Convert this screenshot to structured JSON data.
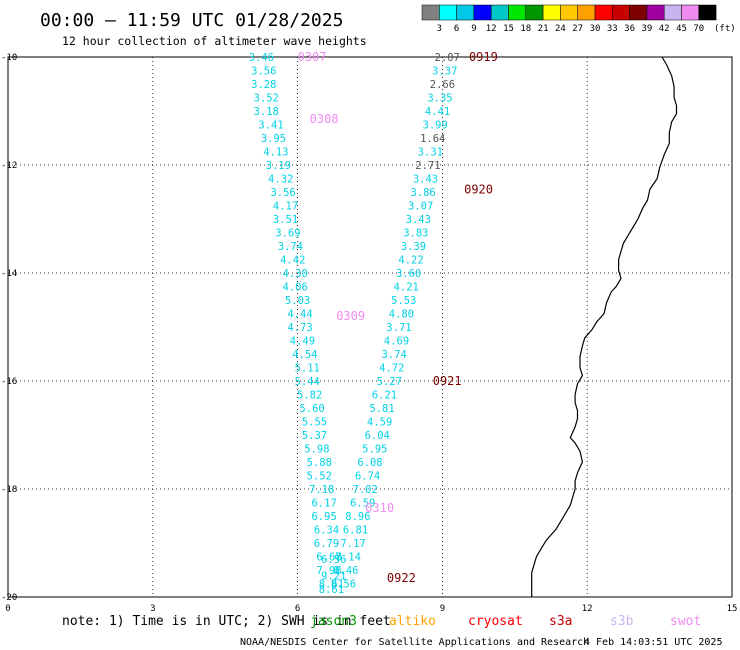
{
  "chart_data": {
    "type": "scatter",
    "title": "00:00 – 11:59 UTC 01/28/2025",
    "subtitle": "12 hour collection of altimeter wave heights",
    "xlim": [
      0,
      15
    ],
    "ylim": [
      -20,
      -10
    ],
    "x_ticks": [
      0,
      3,
      6,
      9,
      12,
      15
    ],
    "y_ticks": [
      -10,
      -12,
      -14,
      -16,
      -18,
      -20
    ],
    "x_tick_labels": [
      "0",
      "3",
      "6",
      "9",
      "12",
      "15"
    ],
    "y_tick_labels": [
      "-10",
      "-12",
      "-14",
      "-16",
      "-18",
      "-20"
    ],
    "grid": true,
    "colorbar": {
      "unit": "(ft)",
      "labels": [
        "3",
        "6",
        "9",
        "12",
        "15",
        "18",
        "21",
        "24",
        "27",
        "30",
        "33",
        "36",
        "39",
        "42",
        "45",
        "70"
      ],
      "colors": [
        "#808080",
        "#00ffff",
        "#00c8e6",
        "#0000ff",
        "#00c8c8",
        "#00e600",
        "#009600",
        "#ffff00",
        "#ffc800",
        "#ffa000",
        "#ff0000",
        "#c80000",
        "#7d0000",
        "#a000a0",
        "#c8b4f0",
        "#f08cf0",
        "#000000"
      ]
    },
    "series": [
      {
        "name": "track-west",
        "color": "#00d2e6",
        "x": [
          5.25,
          5.3,
          5.3,
          5.35,
          5.35,
          5.45,
          5.5,
          5.55,
          5.6,
          5.65,
          5.7,
          5.75,
          5.75,
          5.8,
          5.85,
          5.9,
          5.95,
          5.95,
          6.0,
          6.05,
          6.05,
          6.1,
          6.15,
          6.2,
          6.2,
          6.25,
          6.3,
          6.35,
          6.35,
          6.4,
          6.45,
          6.45,
          6.5,
          6.55,
          6.55,
          6.6,
          6.6,
          6.65,
          6.65,
          6.7,
          6.7,
          6.75,
          6.75
        ],
        "y": [
          -10.0,
          -10.25,
          -10.5,
          -10.75,
          -11.0,
          -11.25,
          -11.5,
          -11.75,
          -12.0,
          -12.25,
          -12.5,
          -12.75,
          -13.0,
          -13.25,
          -13.5,
          -13.75,
          -14.0,
          -14.25,
          -14.5,
          -14.75,
          -15.0,
          -15.25,
          -15.5,
          -15.75,
          -16.0,
          -16.25,
          -16.5,
          -16.75,
          -17.0,
          -17.25,
          -17.5,
          -17.75,
          -18.0,
          -18.25,
          -18.5,
          -18.75,
          -19.0,
          -19.25,
          -19.5,
          -19.75,
          -19.85,
          -19.6,
          -19.3
        ],
        "labels": [
          "3.46",
          "3.56",
          "3.28",
          "3.52",
          "3.18",
          "3.41",
          "3.95",
          "4.13",
          "3.19",
          "4.32",
          "3.56",
          "4.17",
          "3.51",
          "3.69",
          "3.74",
          "4.42",
          "4.30",
          "4.06",
          "5.03",
          "4.44",
          "4.73",
          "4.49",
          "4.54",
          "5.11",
          "5.44",
          "5.82",
          "5.60",
          "5.55",
          "5.37",
          "5.98",
          "5.88",
          "5.52",
          "7.18",
          "6.17",
          "6.95",
          "6.34",
          "6.79",
          "6.67",
          "7.98",
          "8.61",
          "8.61",
          "9.21",
          "6.56"
        ]
      },
      {
        "name": "track-east",
        "color": "#00d2e6",
        "x": [
          9.1,
          9.05,
          9.0,
          8.95,
          8.9,
          8.85,
          8.8,
          8.75,
          8.7,
          8.65,
          8.6,
          8.55,
          8.5,
          8.45,
          8.4,
          8.35,
          8.3,
          8.25,
          8.2,
          8.15,
          8.1,
          8.05,
          8.0,
          7.95,
          7.9,
          7.8,
          7.75,
          7.7,
          7.65,
          7.6,
          7.5,
          7.45,
          7.4,
          7.35,
          7.25,
          7.2,
          7.15,
          7.05,
          7.0,
          6.95
        ],
        "y": [
          -10.0,
          -10.25,
          -10.5,
          -10.75,
          -11.0,
          -11.25,
          -11.5,
          -11.75,
          -12.0,
          -12.25,
          -12.5,
          -12.75,
          -13.0,
          -13.25,
          -13.5,
          -13.75,
          -14.0,
          -14.25,
          -14.5,
          -14.75,
          -15.0,
          -15.25,
          -15.5,
          -15.75,
          -16.0,
          -16.25,
          -16.5,
          -16.75,
          -17.0,
          -17.25,
          -17.5,
          -17.75,
          -18.0,
          -18.25,
          -18.5,
          -18.75,
          -19.0,
          -19.25,
          -19.5,
          -19.75
        ],
        "labels": [
          "2.07",
          "3.37",
          "2.66",
          "3.35",
          "4.41",
          "3.99",
          "1.64",
          "3.31",
          "2.71",
          "3.43",
          "3.86",
          "3.07",
          "3.43",
          "3.83",
          "3.39",
          "4.22",
          "3.60",
          "4.21",
          "5.53",
          "4.80",
          "3.71",
          "4.69",
          "3.74",
          "4.72",
          "5.27",
          "6.21",
          "5.81",
          "4.59",
          "6.04",
          "5.95",
          "6.08",
          "6.74",
          "7.02",
          "6.59",
          "8.96",
          "6.81",
          "7.17",
          "8.14",
          "8.46",
          "8.56"
        ],
        "gray_indices": [
          0,
          2,
          6,
          8
        ]
      }
    ],
    "annotations": [
      {
        "text": "0307",
        "x": 6.0,
        "y": -10.0,
        "color": "#f08cf0"
      },
      {
        "text": "0308",
        "x": 6.25,
        "y": -11.15,
        "color": "#f08cf0"
      },
      {
        "text": "0309",
        "x": 6.8,
        "y": -14.8,
        "color": "#f08cf0"
      },
      {
        "text": "0310",
        "x": 7.4,
        "y": -18.35,
        "color": "#f08cf0"
      },
      {
        "text": "0919",
        "x": 9.55,
        "y": -10.0,
        "color": "#7d0000"
      },
      {
        "text": "0920",
        "x": 9.45,
        "y": -12.45,
        "color": "#7d0000"
      },
      {
        "text": "0921",
        "x": 8.8,
        "y": -16.0,
        "color": "#7d0000"
      },
      {
        "text": "0922",
        "x": 7.85,
        "y": -19.65,
        "color": "#7d0000"
      }
    ],
    "coastline": {
      "x": [
        13.55,
        13.65,
        13.75,
        13.8,
        13.8,
        13.85,
        13.85,
        13.75,
        13.7,
        13.7,
        13.6,
        13.5,
        13.45,
        13.3,
        13.25,
        13.15,
        13.05,
        12.95,
        12.85,
        12.75,
        12.7,
        12.65,
        12.65,
        12.7,
        12.6,
        12.5,
        12.4,
        12.35,
        12.2,
        12.1,
        11.95,
        11.9,
        11.85,
        11.85,
        11.9,
        11.8,
        11.75,
        11.75,
        11.8,
        11.8,
        11.75,
        11.7,
        11.65,
        11.75,
        11.85,
        11.9,
        11.8,
        11.75,
        11.75,
        11.7,
        11.65,
        11.55,
        11.45,
        11.35,
        11.25,
        11.15,
        11.05,
        10.95,
        10.9,
        10.85,
        10.85,
        10.85,
        10.85,
        10.85
      ],
      "y": [
        -10.0,
        -10.15,
        -10.35,
        -10.55,
        -10.75,
        -10.9,
        -11.05,
        -11.2,
        -11.4,
        -11.6,
        -11.8,
        -12.05,
        -12.25,
        -12.45,
        -12.65,
        -12.8,
        -13.0,
        -13.15,
        -13.3,
        -13.45,
        -13.6,
        -13.75,
        -13.95,
        -14.1,
        -14.25,
        -14.35,
        -14.55,
        -14.75,
        -14.9,
        -15.05,
        -15.2,
        -15.35,
        -15.55,
        -15.75,
        -15.9,
        -16.05,
        -16.25,
        -16.4,
        -16.55,
        -16.7,
        -16.85,
        -16.95,
        -17.05,
        -17.15,
        -17.3,
        -17.5,
        -17.7,
        -17.85,
        -18.0,
        -18.15,
        -18.3,
        -18.45,
        -18.6,
        -18.75,
        -18.85,
        -18.95,
        -19.1,
        -19.25,
        -19.4,
        -19.55,
        -19.7,
        -19.8,
        -19.9,
        -20.0
      ]
    }
  },
  "footer": {
    "note": "note: 1) Time is in UTC; 2) SWH is in feet",
    "legend": [
      {
        "text": "jason3",
        "color": "#009600"
      },
      {
        "text": "altiko",
        "color": "#ffa000"
      },
      {
        "text": "cryosat",
        "color": "#ff0000"
      },
      {
        "text": "s3a",
        "color": "#c80000"
      },
      {
        "text": "s3b",
        "color": "#c8b4f0"
      },
      {
        "text": "swot",
        "color": "#f08cf0"
      }
    ],
    "credit": "NOAA/NESDIS Center for Satellite Applications and Research",
    "timestamp": "4 Feb 14:03:51 UTC 2025"
  }
}
